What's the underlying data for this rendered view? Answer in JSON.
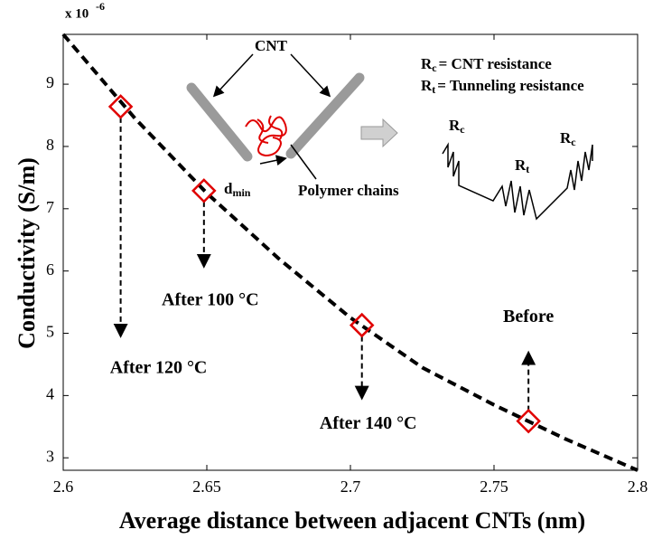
{
  "chart_data": {
    "type": "line",
    "xlabel": "Average distance between adjacent CNTs (nm)",
    "ylabel": "Conductivity (S/m)",
    "y_multiplier": {
      "base": "x 10",
      "exponent": "-6"
    },
    "x": [
      2.6,
      2.625,
      2.65,
      2.675,
      2.7,
      2.725,
      2.75,
      2.775,
      2.8
    ],
    "values": [
      9.8,
      8.45,
      7.25,
      6.2,
      5.25,
      4.45,
      3.85,
      3.3,
      2.8
    ],
    "color": "#000000",
    "line_style": "dashed",
    "markers": {
      "x": [
        2.62,
        2.649,
        2.704,
        2.762
      ],
      "values": [
        8.64,
        7.29,
        5.13,
        3.59
      ],
      "color": "#e00000",
      "labels": [
        "After 120 °C",
        "After 100 °C",
        "After 140 °C",
        "Before"
      ]
    },
    "xlim": [
      2.6,
      2.8
    ],
    "ylim": [
      2.8,
      9.8
    ],
    "xticks": [
      2.6,
      2.65,
      2.7,
      2.75,
      2.8
    ],
    "yticks": [
      3,
      4,
      5,
      6,
      7,
      8,
      9
    ],
    "inset": {
      "cnt": "CNT",
      "d": "d",
      "d_sub": "min",
      "polymer": "Polymer chains",
      "legend": [
        {
          "symbol": "R",
          "sub": "c",
          "text": "= CNT resistance"
        },
        {
          "symbol": "R",
          "sub": "t",
          "text": "= Tunneling resistance"
        }
      ],
      "circuit_labels": [
        {
          "symbol": "R",
          "sub": "c"
        },
        {
          "symbol": "R",
          "sub": "t"
        },
        {
          "symbol": "R",
          "sub": "c"
        }
      ]
    }
  }
}
